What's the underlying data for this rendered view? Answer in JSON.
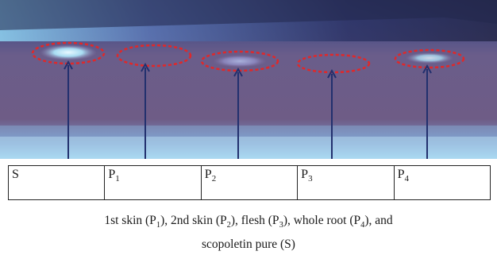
{
  "lanes": [
    {
      "prefix": "S",
      "sub": ""
    },
    {
      "prefix": "P",
      "sub": "1"
    },
    {
      "prefix": "P",
      "sub": "2"
    },
    {
      "prefix": "P",
      "sub": "3"
    },
    {
      "prefix": "P",
      "sub": "4"
    }
  ],
  "caption": {
    "p1_text": "1st skin (P",
    "p1_sub": "1",
    "p2_text": "), 2nd skin (P",
    "p2_sub": "2",
    "p3_text": "), flesh (P",
    "p3_sub": "3",
    "p4_text": "), whole root (P",
    "p4_sub": "4",
    "end1": "), and",
    "line2": "scopoletin pure (S)"
  },
  "colors": {
    "plate_top": "#3a3f7a",
    "plate_mid": "#6f5f88",
    "plate_bottom": "#5a86c8",
    "marker_circle": "#e0282a",
    "arrow": "#22306e"
  }
}
